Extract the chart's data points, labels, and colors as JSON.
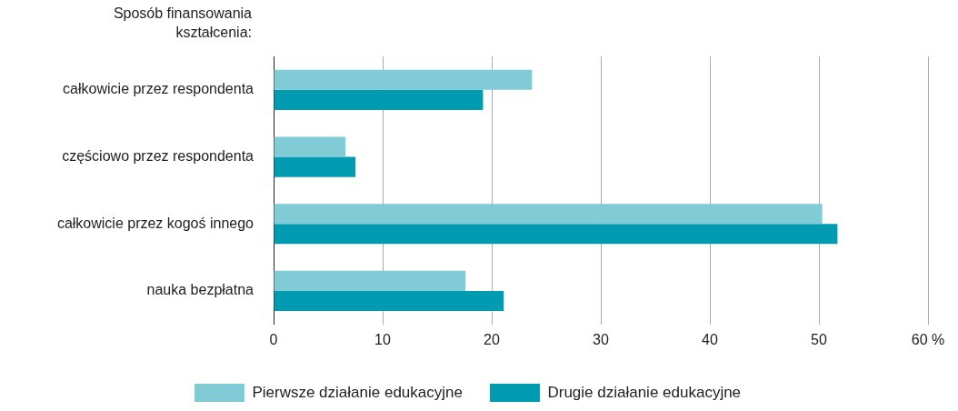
{
  "chart_data": {
    "type": "bar",
    "orientation": "horizontal",
    "ylabel": "Sposób finansowania kształcenia:",
    "categories": [
      "całkowicie przez respondenta",
      "częściowo przez respondenta",
      "całkowicie przez kogoś innego",
      "nauka bezpłatna"
    ],
    "series": [
      {
        "name": "Pierwsze działanie edukacyjne",
        "color": "#80cbd6",
        "values": [
          23.7,
          6.6,
          50.3,
          17.6
        ]
      },
      {
        "name": "Drugie działanie edukacyjne",
        "color": "#009bb0",
        "values": [
          19.2,
          7.5,
          51.7,
          21.1
        ]
      }
    ],
    "xlim": [
      0,
      60
    ],
    "xticks": [
      0,
      10,
      20,
      30,
      40,
      50,
      {
        "value": 60,
        "label": "60 %"
      }
    ],
    "grid": "x",
    "legend": "bottom"
  }
}
